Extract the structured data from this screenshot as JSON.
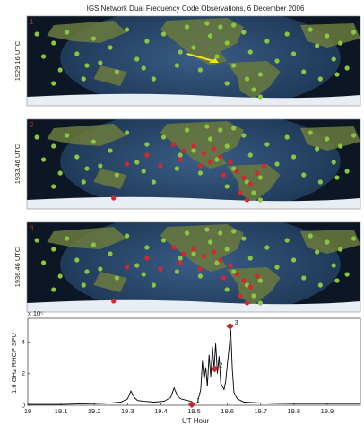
{
  "title": "IGS Network Dual Frequency Code Observations, 6 December 2006",
  "maps": [
    {
      "marker": "1",
      "time_label": "1929.16 UTC",
      "arrow": true
    },
    {
      "marker": "2",
      "time_label": "1933.46 UTC",
      "arrow": false
    },
    {
      "marker": "3",
      "time_label": "1936.46 UTC",
      "arrow": false
    }
  ],
  "colors": {
    "ocean": "#1b3552",
    "night": "#0c1624",
    "land": "#6b7a3e",
    "ice": "#e9eef4",
    "station_ok": "#8cc63f",
    "station_lost": "#d8262c",
    "arrow": "#f3e21b",
    "marker": "#c0282d",
    "plot_line": "#000000"
  },
  "chart_data": {
    "type": "line",
    "title": "",
    "xlabel": "UT Hour",
    "ylabel": "1.6 GHz RHCP SFU",
    "y_multiplier_label": "x 10⁵",
    "xlim": [
      19.0,
      20.0
    ],
    "ylim": [
      0,
      5.5
    ],
    "xticks": [
      19.0,
      19.1,
      19.2,
      19.3,
      19.4,
      19.5,
      19.6,
      19.7,
      19.8,
      19.9
    ],
    "xtick_labels": [
      "19",
      "19.1",
      "19.2",
      "19.3",
      "19.4",
      "19.5",
      "19.6",
      "19.7",
      "19.8",
      "19.9"
    ],
    "yticks": [
      0,
      2,
      4
    ],
    "ytick_labels": [
      "0",
      "2",
      "4"
    ],
    "series": [
      {
        "x": [
          19.0,
          19.05,
          19.1,
          19.15,
          19.2,
          19.25,
          19.28,
          19.3,
          19.31,
          19.32,
          19.33,
          19.35,
          19.38,
          19.41,
          19.43,
          19.44,
          19.45,
          19.46,
          19.48,
          19.49,
          19.5,
          19.51,
          19.52,
          19.525,
          19.53,
          19.535,
          19.54,
          19.545,
          19.55,
          19.555,
          19.56,
          19.565,
          19.57,
          19.575,
          19.58,
          19.585,
          19.59,
          19.595,
          19.6,
          19.605,
          19.61,
          19.615,
          19.62,
          19.63,
          19.64,
          19.65,
          19.7,
          19.75,
          19.8,
          19.85,
          19.9,
          19.95,
          20.0
        ],
        "y": [
          0.05,
          0.05,
          0.05,
          0.08,
          0.1,
          0.15,
          0.2,
          0.4,
          0.9,
          0.5,
          0.3,
          0.25,
          0.2,
          0.25,
          0.5,
          1.1,
          0.6,
          0.4,
          0.3,
          0.25,
          0.1,
          0.15,
          1.0,
          2.8,
          1.6,
          2.4,
          1.2,
          3.2,
          1.8,
          3.7,
          2.3,
          3.9,
          2.0,
          3.1,
          1.4,
          1.2,
          1.0,
          1.5,
          2.6,
          3.6,
          4.8,
          2.2,
          0.8,
          0.4,
          0.3,
          0.2,
          0.15,
          0.12,
          0.1,
          0.1,
          0.1,
          0.1,
          0.1
        ]
      }
    ],
    "markers": [
      {
        "label": "1",
        "x": 19.493,
        "y": 0.05
      },
      {
        "label": "2",
        "x": 19.562,
        "y": 2.3
      },
      {
        "label": "3",
        "x": 19.608,
        "y": 5.0
      }
    ]
  }
}
